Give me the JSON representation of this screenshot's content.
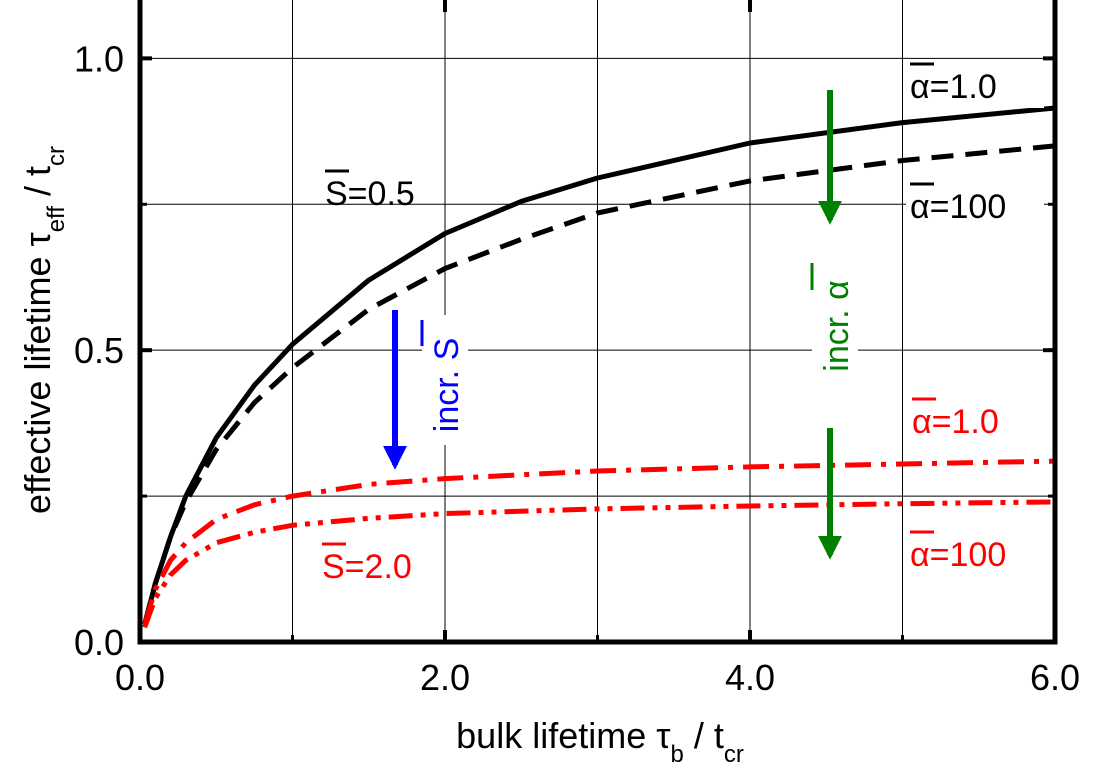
{
  "chart_data": {
    "type": "line",
    "xlabel": "bulk lifetime τb / tcr",
    "xlabel_parts": {
      "main": "bulk lifetime τ",
      "sub1": "b",
      "mid": " / t",
      "sub2": "cr"
    },
    "ylabel": "effective lifetime τeff / tcr",
    "ylabel_parts": {
      "main": "effective lifetime τ",
      "sub1": "eff",
      "mid": " / t",
      "sub2": "cr"
    },
    "xlim": [
      0,
      6
    ],
    "ylim": [
      0,
      1.1
    ],
    "grid": true,
    "xticks": [
      {
        "value": 0,
        "label": "0.0"
      },
      {
        "value": 2,
        "label": "2.0"
      },
      {
        "value": 4,
        "label": "4.0"
      },
      {
        "value": 6,
        "label": "6.0"
      }
    ],
    "xminor": [
      1,
      3,
      5
    ],
    "yticks": [
      {
        "value": 0,
        "label": "0.0"
      },
      {
        "value": 0.5,
        "label": "0.5"
      },
      {
        "value": 1.0,
        "label": "1.0"
      }
    ],
    "yminor": [
      0.25,
      0.75
    ],
    "series": [
      {
        "id": "S05_a1",
        "color": "#000000",
        "dash": "solid",
        "x": [
          0.03,
          0.1,
          0.2,
          0.3,
          0.5,
          0.75,
          1.0,
          1.5,
          2.0,
          2.5,
          3.0,
          4.0,
          5.0,
          6.0
        ],
        "y": [
          0.03,
          0.1,
          0.18,
          0.25,
          0.35,
          0.44,
          0.51,
          0.62,
          0.7,
          0.755,
          0.795,
          0.855,
          0.89,
          0.915
        ]
      },
      {
        "id": "S05_a100",
        "color": "#000000",
        "dash": "dashed",
        "x": [
          0.03,
          0.1,
          0.2,
          0.3,
          0.5,
          0.75,
          1.0,
          1.5,
          2.0,
          2.5,
          3.0,
          4.0,
          5.0,
          6.0
        ],
        "y": [
          0.03,
          0.1,
          0.18,
          0.24,
          0.33,
          0.41,
          0.47,
          0.57,
          0.64,
          0.69,
          0.735,
          0.79,
          0.825,
          0.85
        ]
      },
      {
        "id": "S20_a1",
        "color": "#ff0000",
        "dash": "dashdot",
        "x": [
          0.03,
          0.1,
          0.2,
          0.3,
          0.5,
          0.75,
          1.0,
          1.5,
          2.0,
          3.0,
          4.0,
          5.0,
          6.0
        ],
        "y": [
          0.03,
          0.09,
          0.14,
          0.17,
          0.21,
          0.235,
          0.25,
          0.27,
          0.28,
          0.293,
          0.3,
          0.305,
          0.31
        ]
      },
      {
        "id": "S20_a100",
        "color": "#ff0000",
        "dash": "dashdotdot",
        "x": [
          0.03,
          0.1,
          0.2,
          0.3,
          0.5,
          0.75,
          1.0,
          1.5,
          2.0,
          3.0,
          4.0,
          5.0,
          6.0
        ],
        "y": [
          0.025,
          0.075,
          0.115,
          0.14,
          0.17,
          0.188,
          0.2,
          0.212,
          0.22,
          0.228,
          0.233,
          0.237,
          0.24
        ]
      }
    ],
    "annotations": [
      {
        "id": "S-black",
        "text": "S=0.5",
        "color": "#000000"
      },
      {
        "id": "S-red",
        "text": "S=2.0",
        "color": "#ff0000"
      },
      {
        "id": "alpha-black-1",
        "text": "α=1.0",
        "color": "#000000"
      },
      {
        "id": "alpha-black-100",
        "text": "α=100",
        "color": "#000000"
      },
      {
        "id": "alpha-red-1",
        "text": "α=1.0",
        "color": "#ff0000"
      },
      {
        "id": "alpha-red-100",
        "text": "α=100",
        "color": "#ff0000"
      },
      {
        "id": "incr-S",
        "text": "incr. S",
        "color": "#0000ff"
      },
      {
        "id": "incr-alpha",
        "text": "incr. α",
        "color": "#008000"
      }
    ]
  }
}
